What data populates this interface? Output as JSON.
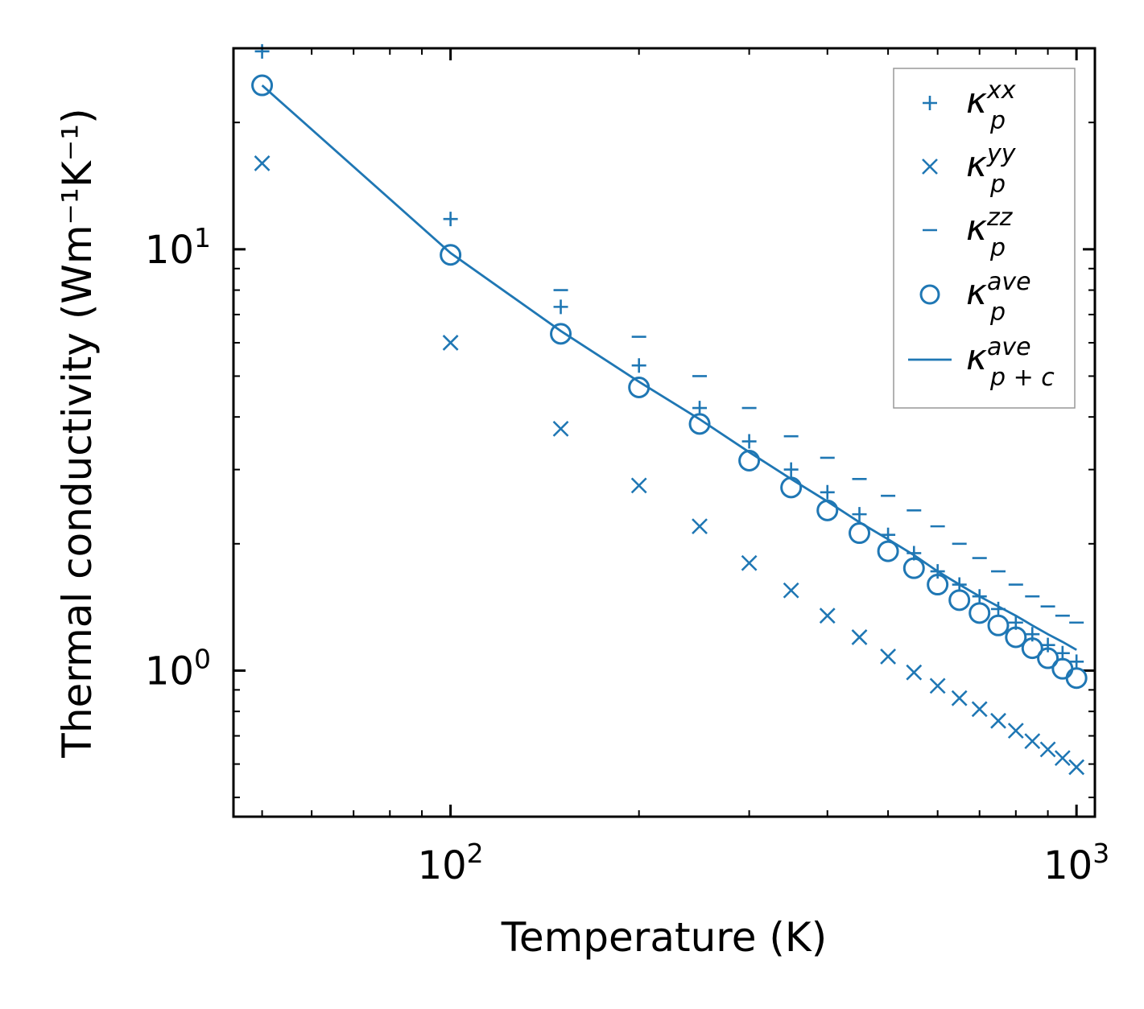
{
  "chart_data": {
    "type": "scatter",
    "xscale": "log",
    "yscale": "log",
    "xlabel": "Temperature (K)",
    "ylabel": "Thermal conductivity (Wm⁻¹K⁻¹)",
    "xlim": [
      45,
      1070
    ],
    "ylim": [
      0.45,
      30
    ],
    "x_ticks": [
      {
        "base": "10",
        "exp": "2",
        "value": 100
      },
      {
        "base": "10",
        "exp": "3",
        "value": 1000
      }
    ],
    "y_ticks": [
      {
        "base": "10",
        "exp": "0",
        "value": 1
      },
      {
        "base": "10",
        "exp": "1",
        "value": 10
      }
    ],
    "color": "#1f77b4",
    "series": [
      {
        "name": "kxx",
        "symbol": "κ",
        "sub": "p",
        "sup": "xx",
        "marker": "plus",
        "x": [
          50,
          100,
          150,
          200,
          250,
          300,
          350,
          400,
          450,
          500,
          550,
          600,
          650,
          700,
          750,
          800,
          850,
          900,
          950,
          1000
        ],
        "y": [
          29.5,
          11.8,
          7.3,
          5.3,
          4.2,
          3.5,
          3.0,
          2.65,
          2.35,
          2.1,
          1.9,
          1.72,
          1.6,
          1.5,
          1.4,
          1.3,
          1.22,
          1.15,
          1.1,
          1.05
        ]
      },
      {
        "name": "kyy",
        "symbol": "κ",
        "sub": "p",
        "sup": "yy",
        "marker": "x",
        "x": [
          50,
          100,
          150,
          200,
          250,
          300,
          350,
          400,
          450,
          500,
          550,
          600,
          650,
          700,
          750,
          800,
          850,
          900,
          950,
          1000
        ],
        "y": [
          16.0,
          6.0,
          3.75,
          2.75,
          2.2,
          1.8,
          1.55,
          1.35,
          1.2,
          1.08,
          0.99,
          0.92,
          0.86,
          0.81,
          0.76,
          0.72,
          0.68,
          0.65,
          0.62,
          0.59
        ]
      },
      {
        "name": "kzz",
        "symbol": "κ",
        "sub": "p",
        "sup": "zz",
        "marker": "hline",
        "x": [
          150,
          200,
          250,
          300,
          350,
          400,
          450,
          500,
          550,
          600,
          650,
          700,
          750,
          800,
          850,
          900,
          950,
          1000
        ],
        "y": [
          8.0,
          6.2,
          5.0,
          4.2,
          3.6,
          3.2,
          2.85,
          2.6,
          2.4,
          2.2,
          2.0,
          1.85,
          1.72,
          1.6,
          1.5,
          1.42,
          1.35,
          1.3
        ]
      },
      {
        "name": "kave",
        "symbol": "κ",
        "sub": "p",
        "sup": "ave",
        "marker": "circle",
        "x": [
          50,
          100,
          150,
          200,
          250,
          300,
          350,
          400,
          450,
          500,
          550,
          600,
          650,
          700,
          750,
          800,
          850,
          900,
          950,
          1000
        ],
        "y": [
          24.5,
          9.7,
          6.3,
          4.7,
          3.85,
          3.15,
          2.72,
          2.4,
          2.12,
          1.92,
          1.75,
          1.6,
          1.47,
          1.37,
          1.28,
          1.2,
          1.13,
          1.07,
          1.01,
          0.96
        ]
      },
      {
        "name": "kave_pc",
        "symbol": "κ",
        "sub": "p + c",
        "sup": "ave",
        "marker": "line",
        "x": [
          50,
          100,
          150,
          200,
          250,
          300,
          350,
          400,
          450,
          500,
          550,
          600,
          650,
          700,
          750,
          800,
          850,
          900,
          950,
          1000
        ],
        "y": [
          24.5,
          9.8,
          6.4,
          4.85,
          3.95,
          3.3,
          2.85,
          2.52,
          2.25,
          2.05,
          1.88,
          1.72,
          1.6,
          1.5,
          1.42,
          1.35,
          1.28,
          1.22,
          1.17,
          1.12
        ]
      }
    ],
    "legend_position": "top-right",
    "grid": false
  }
}
